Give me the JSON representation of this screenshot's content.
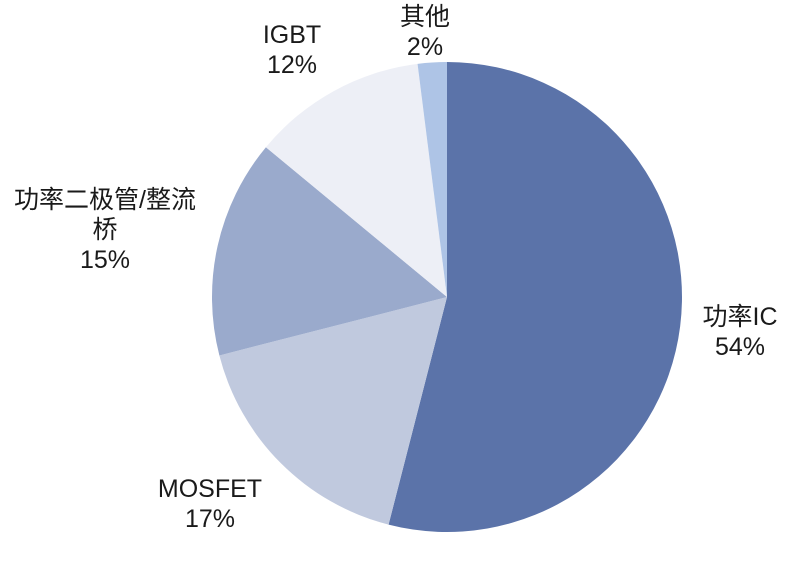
{
  "page": {
    "background_color": "#FFFFFF",
    "text_color": "#1A1A1A"
  },
  "chart_data": {
    "type": "pie",
    "title": "",
    "legend": "none",
    "grid": false,
    "direction": "clockwise",
    "start_angle_deg": 0,
    "label_style": "outside: category name + percent",
    "slices": [
      {
        "id": "power-ic",
        "name": "功率IC",
        "value": 54,
        "percent_label": "54%",
        "color": "#5B73A9"
      },
      {
        "id": "mosfet",
        "name": "MOSFET",
        "value": 17,
        "percent_label": "17%",
        "color": "#C0C9DE"
      },
      {
        "id": "diode-bridge",
        "name": "功率二极管/整流桥",
        "value": 15,
        "percent_label": "15%",
        "color": "#9AAACC"
      },
      {
        "id": "igbt",
        "name": "IGBT",
        "value": 12,
        "percent_label": "12%",
        "color": "#EDEFF6"
      },
      {
        "id": "other",
        "name": "其他",
        "value": 2,
        "percent_label": "2%",
        "color": "#AEC4E6"
      }
    ]
  }
}
